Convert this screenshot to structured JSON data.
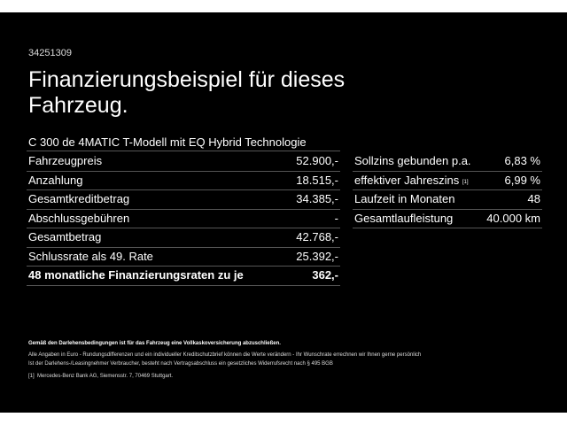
{
  "offer_id": "34251309",
  "title": "Finanzierungsbeispiel für dieses Fahrzeug.",
  "model": "C 300 de 4MATIC T-Modell mit EQ Hybrid Technologie",
  "left_rows": [
    {
      "label": "Fahrzeugpreis",
      "value": "52.900,-"
    },
    {
      "label": "Anzahlung",
      "value": "18.515,-"
    },
    {
      "label": "Gesamtkreditbetrag",
      "value": "34.385,-"
    },
    {
      "label": "Abschlussgebühren",
      "value": "-"
    },
    {
      "label": "Gesamtbetrag",
      "value": "42.768,-"
    },
    {
      "label": "Schlussrate als 49. Rate",
      "value": "25.392,-"
    },
    {
      "label": "48 monatliche Finanzierungsraten zu je",
      "value": "362,-"
    }
  ],
  "right_rows": [
    {
      "label": "Sollzins gebunden p.a.",
      "value": "6,83 %"
    },
    {
      "label": "effektiver Jahreszins",
      "sup": "[1]",
      "value": "6,99 %"
    },
    {
      "label": "Laufzeit in Monaten",
      "value": "48"
    },
    {
      "label": "Gesamtlaufleistung",
      "value": "40.000 km"
    }
  ],
  "notes": {
    "bold": "Gemäß den Darlehensbedingungen ist für das Fahrzeug eine Vollkaskoversicherung abzuschließen.",
    "line1": "Alle Angaben in Euro - Rundungsdifferenzen und ein individueller Kreditschutzbrief können die Werte verändern - Ihr Wunschrate errechnen wir Ihnen gerne persönlich",
    "line2": "Ist der Darlehens-/Leasingnehmer Verbraucher, besteht nach Vertragsabschluss ein gesetzliches Widerrufsrecht nach § 495 BGB",
    "footnote_mark": "[1]",
    "footnote": "Mercedes-Benz Bank AG, Siemensstr. 7, 70469 Stuttgart."
  }
}
